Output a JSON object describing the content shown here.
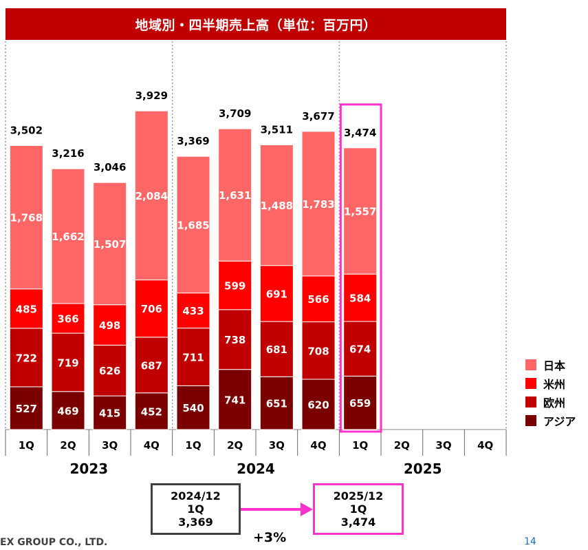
{
  "title": "地域別・四半期売上高（単位：百万円）",
  "chart_data": {
    "type": "bar",
    "stacked": true,
    "title": "地域別・四半期売上高（単位：百万円）",
    "years": [
      {
        "label": "2023",
        "quarters": [
          "1Q",
          "2Q",
          "3Q",
          "4Q"
        ]
      },
      {
        "label": "2024",
        "quarters": [
          "1Q",
          "2Q",
          "3Q",
          "4Q"
        ]
      },
      {
        "label": "2025",
        "quarters": [
          "1Q",
          "2Q",
          "3Q",
          "4Q"
        ]
      }
    ],
    "series": [
      {
        "name": "アジア",
        "color": "#7a0000",
        "values": [
          527,
          469,
          415,
          452,
          540,
          741,
          651,
          620,
          659,
          null,
          null,
          null
        ]
      },
      {
        "name": "欧州",
        "color": "#c00000",
        "values": [
          722,
          719,
          626,
          687,
          711,
          738,
          681,
          708,
          674,
          null,
          null,
          null
        ]
      },
      {
        "name": "米州",
        "color": "#ff0000",
        "values": [
          485,
          366,
          498,
          706,
          433,
          599,
          691,
          566,
          584,
          null,
          null,
          null
        ]
      },
      {
        "name": "日本",
        "color": "#ff6666",
        "values": [
          1768,
          1662,
          1507,
          2084,
          1685,
          1631,
          1488,
          1783,
          1557,
          null,
          null,
          null
        ]
      }
    ],
    "totals": [
      "3,502",
      "3,216",
      "3,046",
      "3,929",
      "3,369",
      "3,709",
      "3,511",
      "3,677",
      "3,474",
      null,
      null,
      null
    ],
    "highlight_index": 8,
    "ylim": [
      0,
      4000
    ],
    "legend_position": "right",
    "grid": false
  },
  "legend": [
    {
      "label": "日本",
      "color": "#ff6666"
    },
    {
      "label": "米州",
      "color": "#ff0000"
    },
    {
      "label": "欧州",
      "color": "#c00000"
    },
    {
      "label": "アジア",
      "color": "#7a0000"
    }
  ],
  "comparison": {
    "from": {
      "period": "2024/12",
      "quarter": "1Q",
      "value": "3,369"
    },
    "to": {
      "period": "2025/12",
      "quarter": "1Q",
      "value": "3,474"
    },
    "change": "+3%",
    "highlight_color": "#ff33cc"
  },
  "footer": {
    "company": "EX GROUP CO., LTD.",
    "page_number": "14"
  }
}
